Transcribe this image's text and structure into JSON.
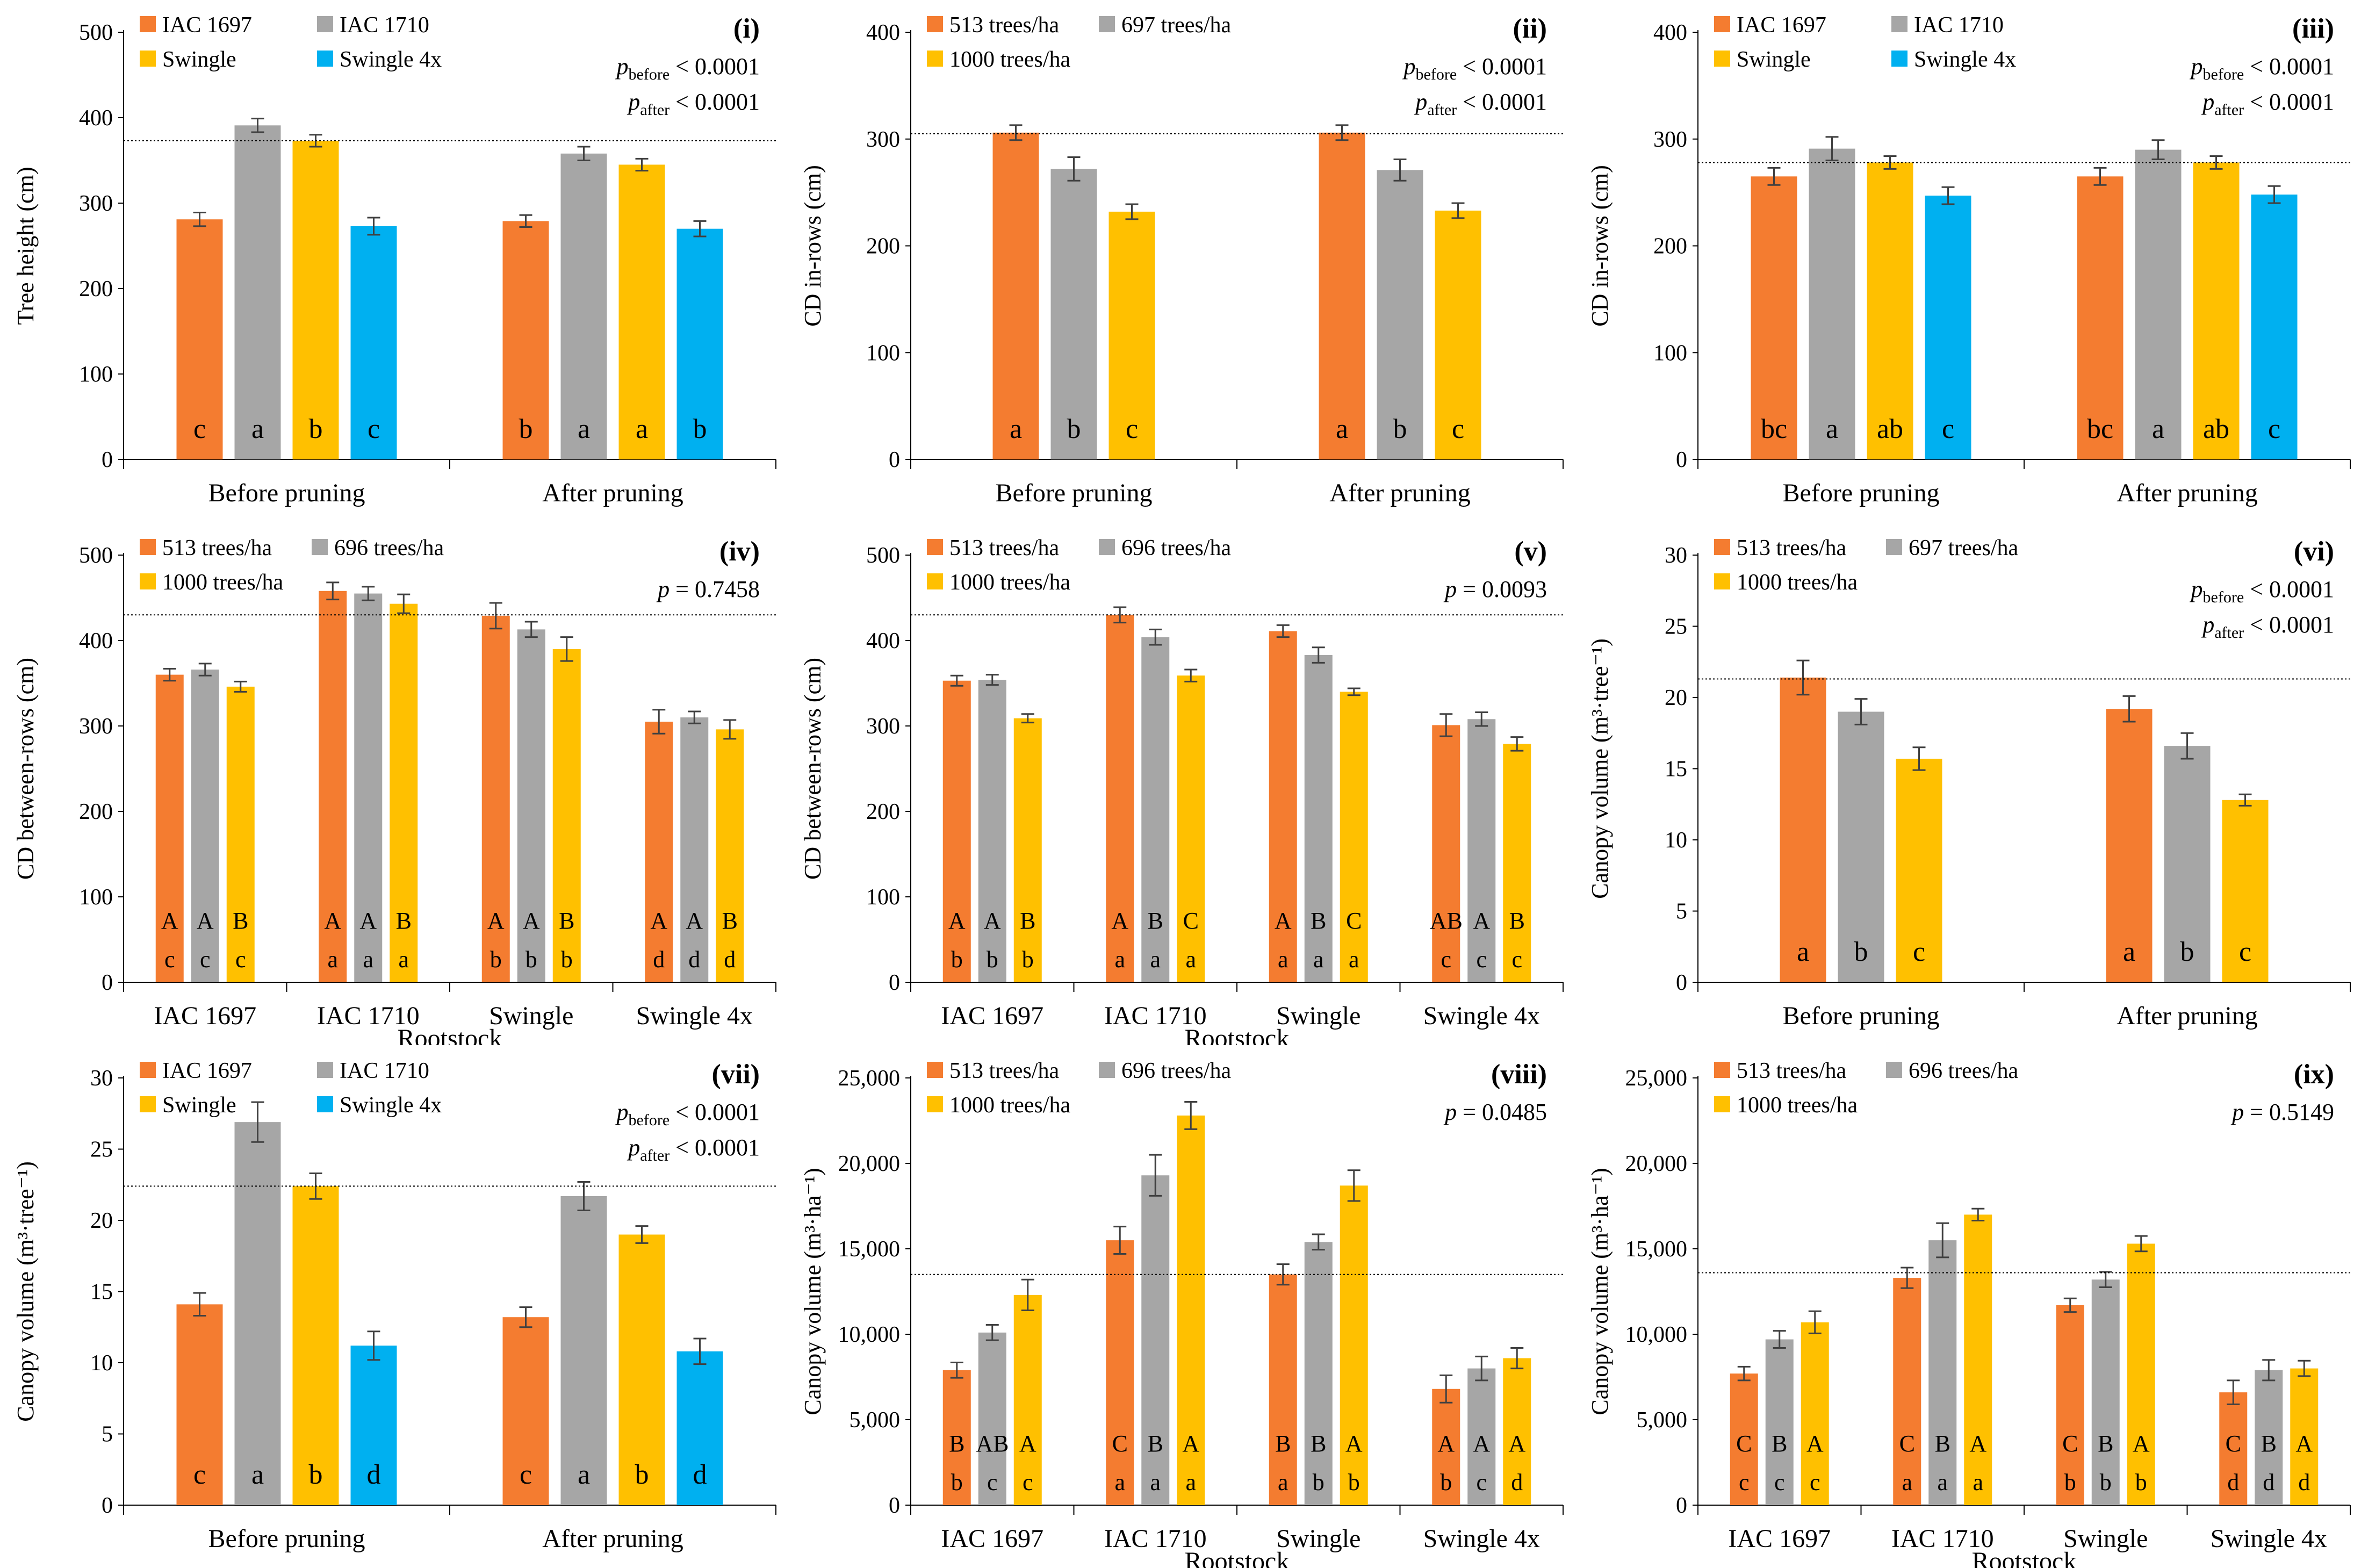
{
  "colors": {
    "orange": "#F47C30",
    "gray": "#A6A6A6",
    "yellow": "#FFC000",
    "blue": "#00B0F0",
    "axis": "#000000",
    "error_bar": "#404040"
  },
  "chart_data": [
    {
      "id": "panel-i",
      "type": "bar",
      "panel_label": "(i)",
      "ylabel": "Tree height (cm)",
      "xlabel": "",
      "ylim": [
        0,
        500
      ],
      "yticks": [
        "0",
        "100",
        "200",
        "300",
        "400",
        "500"
      ],
      "ytick_values": [
        0,
        100,
        200,
        300,
        400,
        500
      ],
      "categories": [
        "Before pruning",
        "After pruning"
      ],
      "series": [
        {
          "name": "IAC 1697",
          "color": "orange",
          "values": [
            281,
            279
          ],
          "errors": [
            8,
            7
          ],
          "lower_letters": [
            "c",
            "b"
          ]
        },
        {
          "name": "IAC 1710",
          "color": "gray",
          "values": [
            391,
            358
          ],
          "errors": [
            8,
            8
          ],
          "lower_letters": [
            "a",
            "a"
          ]
        },
        {
          "name": "Swingle",
          "color": "yellow",
          "values": [
            373,
            345
          ],
          "errors": [
            7,
            7
          ],
          "lower_letters": [
            "b",
            "a"
          ]
        },
        {
          "name": "Swingle 4x",
          "color": "blue",
          "values": [
            273,
            270
          ],
          "errors": [
            10,
            9
          ],
          "lower_letters": [
            "c",
            "b"
          ]
        }
      ],
      "reference_line": 373,
      "stats": [
        {
          "p": "p",
          "sub": "before",
          "text": " < 0.0001"
        },
        {
          "p": "p",
          "sub": "after",
          "text": " < 0.0001"
        }
      ]
    },
    {
      "id": "panel-ii",
      "type": "bar",
      "panel_label": "(ii)",
      "ylabel": "CD in-rows (cm)",
      "xlabel": "",
      "ylim": [
        0,
        400
      ],
      "yticks": [
        "0",
        "100",
        "200",
        "300",
        "400"
      ],
      "ytick_values": [
        0,
        100,
        200,
        300,
        400
      ],
      "categories": [
        "Before pruning",
        "After pruning"
      ],
      "series": [
        {
          "name": "513 trees/ha",
          "color": "orange",
          "values": [
            306,
            306
          ],
          "errors": [
            7,
            7
          ],
          "lower_letters": [
            "a",
            "a"
          ]
        },
        {
          "name": "697 trees/ha",
          "color": "gray",
          "values": [
            272,
            271
          ],
          "errors": [
            11,
            10
          ],
          "lower_letters": [
            "b",
            "b"
          ]
        },
        {
          "name": "1000 trees/ha",
          "color": "yellow",
          "values": [
            232,
            233
          ],
          "errors": [
            7,
            7
          ],
          "lower_letters": [
            "c",
            "c"
          ]
        }
      ],
      "reference_line": 305,
      "stats": [
        {
          "p": "p",
          "sub": "before",
          "text": " < 0.0001"
        },
        {
          "p": "p",
          "sub": "after",
          "text": " < 0.0001"
        }
      ]
    },
    {
      "id": "panel-iii",
      "type": "bar",
      "panel_label": "(iii)",
      "ylabel": "CD in-rows (cm)",
      "xlabel": "",
      "ylim": [
        0,
        400
      ],
      "yticks": [
        "0",
        "100",
        "200",
        "300",
        "400"
      ],
      "ytick_values": [
        0,
        100,
        200,
        300,
        400
      ],
      "categories": [
        "Before pruning",
        "After pruning"
      ],
      "series": [
        {
          "name": "IAC 1697",
          "color": "orange",
          "values": [
            265,
            265
          ],
          "errors": [
            8,
            8
          ],
          "lower_letters": [
            "bc",
            "bc"
          ]
        },
        {
          "name": "IAC 1710",
          "color": "gray",
          "values": [
            291,
            290
          ],
          "errors": [
            11,
            9
          ],
          "lower_letters": [
            "a",
            "a"
          ]
        },
        {
          "name": "Swingle",
          "color": "yellow",
          "values": [
            278,
            278
          ],
          "errors": [
            6,
            6
          ],
          "lower_letters": [
            "ab",
            "ab"
          ]
        },
        {
          "name": "Swingle 4x",
          "color": "blue",
          "values": [
            247,
            248
          ],
          "errors": [
            8,
            8
          ],
          "lower_letters": [
            "c",
            "c"
          ]
        }
      ],
      "reference_line": 278,
      "stats": [
        {
          "p": "p",
          "sub": "before",
          "text": " < 0.0001"
        },
        {
          "p": "p",
          "sub": "after",
          "text": " < 0.0001"
        }
      ]
    },
    {
      "id": "panel-iv",
      "type": "bar",
      "panel_label": "(iv)",
      "ylabel": "CD between-rows (cm)",
      "xlabel": "Rootstock",
      "ylim": [
        0,
        500
      ],
      "yticks": [
        "0",
        "100",
        "200",
        "300",
        "400",
        "500"
      ],
      "ytick_values": [
        0,
        100,
        200,
        300,
        400,
        500
      ],
      "categories": [
        "IAC 1697",
        "IAC 1710",
        "Swingle",
        "Swingle 4x"
      ],
      "series": [
        {
          "name": "513 trees/ha",
          "color": "orange",
          "values": [
            360,
            458,
            429,
            305
          ],
          "errors": [
            7,
            10,
            15,
            14
          ],
          "upper_letters": [
            "A",
            "A",
            "A",
            "A"
          ],
          "lower_letters": [
            "c",
            "a",
            "b",
            "d"
          ]
        },
        {
          "name": "696 trees/ha",
          "color": "gray",
          "values": [
            366,
            455,
            413,
            310
          ],
          "errors": [
            7,
            8,
            9,
            7
          ],
          "upper_letters": [
            "A",
            "A",
            "A",
            "A"
          ],
          "lower_letters": [
            "c",
            "a",
            "b",
            "d"
          ]
        },
        {
          "name": "1000 trees/ha",
          "color": "yellow",
          "values": [
            346,
            443,
            390,
            296
          ],
          "errors": [
            6,
            11,
            14,
            11
          ],
          "upper_letters": [
            "B",
            "B",
            "B",
            "B"
          ],
          "lower_letters": [
            "c",
            "a",
            "b",
            "d"
          ]
        }
      ],
      "reference_line": 430,
      "stats": [
        {
          "p": "p",
          "sub": "",
          "text": " = 0.7458"
        }
      ]
    },
    {
      "id": "panel-v",
      "type": "bar",
      "panel_label": "(v)",
      "ylabel": "CD between-rows (cm)",
      "xlabel": "Rootstock",
      "ylim": [
        0,
        500
      ],
      "yticks": [
        "0",
        "100",
        "200",
        "300",
        "400",
        "500"
      ],
      "ytick_values": [
        0,
        100,
        200,
        300,
        400,
        500
      ],
      "categories": [
        "IAC 1697",
        "IAC 1710",
        "Swingle",
        "Swingle 4x"
      ],
      "series": [
        {
          "name": "513 trees/ha",
          "color": "orange",
          "values": [
            353,
            430,
            411,
            301
          ],
          "errors": [
            6,
            9,
            7,
            13
          ],
          "upper_letters": [
            "A",
            "A",
            "A",
            "AB"
          ],
          "lower_letters": [
            "b",
            "a",
            "a",
            "c"
          ]
        },
        {
          "name": "696 trees/ha",
          "color": "gray",
          "values": [
            354,
            404,
            383,
            308
          ],
          "errors": [
            6,
            9,
            9,
            8
          ],
          "upper_letters": [
            "A",
            "B",
            "B",
            "A"
          ],
          "lower_letters": [
            "b",
            "a",
            "a",
            "c"
          ]
        },
        {
          "name": "1000 trees/ha",
          "color": "yellow",
          "values": [
            309,
            359,
            340,
            279
          ],
          "errors": [
            5,
            7,
            4,
            8
          ],
          "upper_letters": [
            "B",
            "C",
            "C",
            "B"
          ],
          "lower_letters": [
            "b",
            "a",
            "a",
            "c"
          ]
        }
      ],
      "reference_line": 430,
      "stats": [
        {
          "p": "p",
          "sub": "",
          "text": " = 0.0093"
        }
      ]
    },
    {
      "id": "panel-vi",
      "type": "bar",
      "panel_label": "(vi)",
      "ylabel": "Canopy volume (m³·tree⁻¹)",
      "xlabel": "",
      "ylim": [
        0,
        30
      ],
      "yticks": [
        "0",
        "5",
        "10",
        "15",
        "20",
        "25",
        "30"
      ],
      "ytick_values": [
        0,
        5,
        10,
        15,
        20,
        25,
        30
      ],
      "categories": [
        "Before pruning",
        "After pruning"
      ],
      "series": [
        {
          "name": "513 trees/ha",
          "color": "orange",
          "values": [
            21.4,
            19.2
          ],
          "errors": [
            1.2,
            0.9
          ],
          "lower_letters": [
            "a",
            "a"
          ]
        },
        {
          "name": "697 trees/ha",
          "color": "gray",
          "values": [
            19.0,
            16.6
          ],
          "errors": [
            0.9,
            0.9
          ],
          "lower_letters": [
            "b",
            "b"
          ]
        },
        {
          "name": "1000 trees/ha",
          "color": "yellow",
          "values": [
            15.7,
            12.8
          ],
          "errors": [
            0.8,
            0.4
          ],
          "lower_letters": [
            "c",
            "c"
          ]
        }
      ],
      "reference_line": 21.3,
      "stats": [
        {
          "p": "p",
          "sub": "before",
          "text": " < 0.0001"
        },
        {
          "p": "p",
          "sub": "after",
          "text": " < 0.0001"
        }
      ]
    },
    {
      "id": "panel-vii",
      "type": "bar",
      "panel_label": "(vii)",
      "ylabel": "Canopy volume (m³·tree⁻¹)",
      "xlabel": "",
      "ylim": [
        0,
        30
      ],
      "yticks": [
        "0",
        "5",
        "10",
        "15",
        "20",
        "25",
        "30"
      ],
      "ytick_values": [
        0,
        5,
        10,
        15,
        20,
        25,
        30
      ],
      "categories": [
        "Before pruning",
        "After pruning"
      ],
      "series": [
        {
          "name": "IAC 1697",
          "color": "orange",
          "values": [
            14.1,
            13.2
          ],
          "errors": [
            0.8,
            0.7
          ],
          "lower_letters": [
            "c",
            "c"
          ]
        },
        {
          "name": "IAC 1710",
          "color": "gray",
          "values": [
            26.9,
            21.7
          ],
          "errors": [
            1.4,
            1.0
          ],
          "lower_letters": [
            "a",
            "a"
          ]
        },
        {
          "name": "Swingle",
          "color": "yellow",
          "values": [
            22.4,
            19.0
          ],
          "errors": [
            0.9,
            0.6
          ],
          "lower_letters": [
            "b",
            "b"
          ]
        },
        {
          "name": "Swingle 4x",
          "color": "blue",
          "values": [
            11.2,
            10.8
          ],
          "errors": [
            1.0,
            0.9
          ],
          "lower_letters": [
            "d",
            "d"
          ]
        }
      ],
      "reference_line": 22.4,
      "stats": [
        {
          "p": "p",
          "sub": "before",
          "text": " < 0.0001"
        },
        {
          "p": "p",
          "sub": "after",
          "text": " < 0.0001"
        }
      ]
    },
    {
      "id": "panel-viii",
      "type": "bar",
      "panel_label": "(viii)",
      "ylabel": "Canopy volume (m³·ha⁻¹)",
      "xlabel": "Rootstock",
      "ylim": [
        0,
        25000
      ],
      "yticks": [
        "0",
        "5,000",
        "10,000",
        "15,000",
        "20,000",
        "25,000"
      ],
      "ytick_values": [
        0,
        5000,
        10000,
        15000,
        20000,
        25000
      ],
      "categories": [
        "IAC 1697",
        "IAC 1710",
        "Swingle",
        "Swingle 4x"
      ],
      "series": [
        {
          "name": "513 trees/ha",
          "color": "orange",
          "values": [
            7900,
            15500,
            13500,
            6800
          ],
          "errors": [
            450,
            800,
            600,
            800
          ],
          "upper_letters": [
            "B",
            "C",
            "B",
            "A"
          ],
          "lower_letters": [
            "b",
            "a",
            "a",
            "b"
          ]
        },
        {
          "name": "696 trees/ha",
          "color": "gray",
          "values": [
            10100,
            19300,
            15400,
            8000
          ],
          "errors": [
            450,
            1200,
            450,
            700
          ],
          "upper_letters": [
            "AB",
            "B",
            "B",
            "A"
          ],
          "lower_letters": [
            "c",
            "a",
            "b",
            "c"
          ]
        },
        {
          "name": "1000 trees/ha",
          "color": "yellow",
          "values": [
            12300,
            22800,
            18700,
            8600
          ],
          "errors": [
            900,
            800,
            900,
            600
          ],
          "upper_letters": [
            "A",
            "A",
            "A",
            "A"
          ],
          "lower_letters": [
            "c",
            "a",
            "b",
            "d"
          ]
        }
      ],
      "reference_line": 13500,
      "stats": [
        {
          "p": "p",
          "sub": "",
          "text": " = 0.0485"
        }
      ]
    },
    {
      "id": "panel-ix",
      "type": "bar",
      "panel_label": "(ix)",
      "ylabel": "Canopy volume (m³·ha⁻¹)",
      "xlabel": "Rootstock",
      "ylim": [
        0,
        25000
      ],
      "yticks": [
        "0",
        "5,000",
        "10,000",
        "15,000",
        "20,000",
        "25,000"
      ],
      "ytick_values": [
        0,
        5000,
        10000,
        15000,
        20000,
        25000
      ],
      "categories": [
        "IAC 1697",
        "IAC 1710",
        "Swingle",
        "Swingle 4x"
      ],
      "series": [
        {
          "name": "513 trees/ha",
          "color": "orange",
          "values": [
            7700,
            13300,
            11700,
            6600
          ],
          "errors": [
            400,
            600,
            400,
            700
          ],
          "upper_letters": [
            "C",
            "C",
            "C",
            "C"
          ],
          "lower_letters": [
            "c",
            "a",
            "b",
            "d"
          ]
        },
        {
          "name": "696 trees/ha",
          "color": "gray",
          "values": [
            9700,
            15500,
            13200,
            7900
          ],
          "errors": [
            500,
            1000,
            450,
            600
          ],
          "upper_letters": [
            "B",
            "B",
            "B",
            "B"
          ],
          "lower_letters": [
            "c",
            "a",
            "b",
            "d"
          ]
        },
        {
          "name": "1000 trees/ha",
          "color": "yellow",
          "values": [
            10700,
            17000,
            15300,
            8000
          ],
          "errors": [
            650,
            350,
            450,
            450
          ],
          "upper_letters": [
            "A",
            "A",
            "A",
            "A"
          ],
          "lower_letters": [
            "c",
            "a",
            "b",
            "d"
          ]
        }
      ],
      "reference_line": 13600,
      "stats": [
        {
          "p": "p",
          "sub": "",
          "text": " = 0.5149"
        }
      ]
    }
  ]
}
